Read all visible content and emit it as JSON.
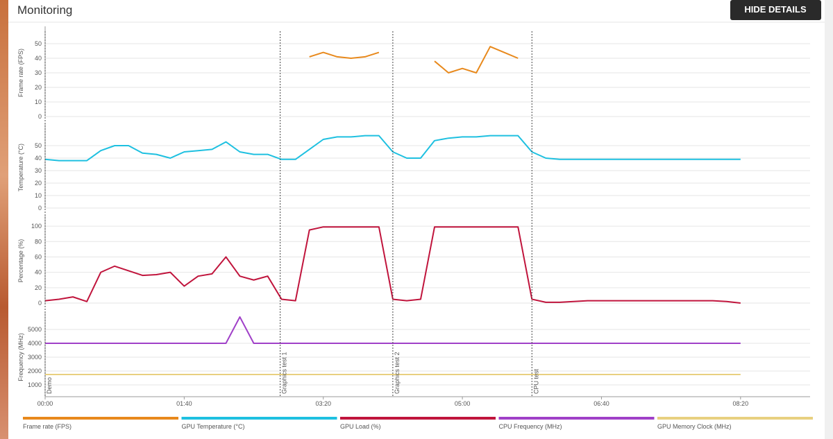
{
  "header": {
    "title": "Monitoring",
    "button": "HIDE DETAILS"
  },
  "chart_data": [
    {
      "type": "line",
      "ylabel": "Frame rate (FPS)",
      "xlim": [
        0,
        550
      ],
      "ylim": [
        0,
        60
      ],
      "yticks": [
        0,
        10,
        20,
        30,
        40,
        50
      ],
      "grid": true,
      "x": [
        0,
        10,
        20,
        30,
        40,
        50,
        60,
        70,
        80,
        90,
        100,
        110,
        120,
        130,
        140,
        150,
        160,
        170,
        180,
        190,
        200,
        210,
        220,
        230,
        240,
        250,
        260,
        270,
        280,
        290,
        300,
        310,
        320,
        330,
        340,
        350,
        360,
        370,
        380,
        390,
        400,
        410,
        420,
        430,
        440,
        450,
        460,
        470,
        480,
        490,
        500
      ],
      "series": [
        {
          "name": "Frame rate (FPS)",
          "color": "#e8891c",
          "values": [
            null,
            null,
            null,
            null,
            null,
            null,
            null,
            null,
            null,
            null,
            null,
            null,
            null,
            null,
            null,
            null,
            null,
            null,
            null,
            41,
            44,
            41,
            40,
            41,
            44,
            null,
            null,
            null,
            38,
            30,
            33,
            30,
            48,
            44,
            40,
            null,
            null,
            null,
            null,
            null,
            null,
            null,
            null,
            null,
            null,
            null,
            null,
            null,
            null,
            null,
            null
          ]
        }
      ]
    },
    {
      "type": "line",
      "ylabel": "Temperature (°C)",
      "xlim": [
        0,
        550
      ],
      "ylim": [
        0,
        65
      ],
      "yticks": [
        0,
        10,
        20,
        30,
        40,
        50
      ],
      "grid": true,
      "x": [
        0,
        10,
        20,
        30,
        40,
        50,
        60,
        70,
        80,
        90,
        100,
        110,
        120,
        130,
        140,
        150,
        160,
        170,
        180,
        190,
        200,
        210,
        220,
        230,
        240,
        250,
        260,
        270,
        280,
        290,
        300,
        310,
        320,
        330,
        340,
        350,
        360,
        370,
        380,
        390,
        400,
        410,
        420,
        430,
        440,
        450,
        460,
        470,
        480,
        490,
        500
      ],
      "series": [
        {
          "name": "GPU Temperature (°C)",
          "color": "#1ec0e0",
          "values": [
            39,
            38,
            38,
            38,
            46,
            50,
            50,
            44,
            43,
            40,
            45,
            46,
            47,
            53,
            45,
            43,
            43,
            39,
            39,
            47,
            55,
            57,
            57,
            58,
            58,
            45,
            40,
            40,
            54,
            56,
            57,
            57,
            58,
            58,
            58,
            45,
            40,
            39,
            39,
            39,
            39,
            39,
            39,
            39,
            39,
            39,
            39,
            39,
            39,
            39,
            39
          ]
        }
      ]
    },
    {
      "type": "line",
      "ylabel": "Percentage (%)",
      "xlim": [
        0,
        550
      ],
      "ylim": [
        0,
        110
      ],
      "yticks": [
        0,
        20,
        40,
        60,
        80,
        100
      ],
      "grid": true,
      "x": [
        0,
        10,
        20,
        30,
        40,
        50,
        60,
        70,
        80,
        90,
        100,
        110,
        120,
        130,
        140,
        150,
        160,
        170,
        180,
        190,
        200,
        210,
        220,
        230,
        240,
        250,
        260,
        270,
        280,
        290,
        300,
        310,
        320,
        330,
        340,
        350,
        360,
        370,
        380,
        390,
        400,
        410,
        420,
        430,
        440,
        450,
        460,
        470,
        480,
        490,
        500
      ],
      "series": [
        {
          "name": "GPU Load (%)",
          "color": "#c0143c",
          "values": [
            3,
            5,
            8,
            2,
            40,
            48,
            42,
            36,
            37,
            40,
            22,
            35,
            38,
            60,
            35,
            30,
            35,
            5,
            3,
            95,
            99,
            99,
            99,
            99,
            99,
            5,
            3,
            5,
            99,
            99,
            99,
            99,
            99,
            99,
            99,
            5,
            1,
            1,
            2,
            3,
            3,
            3,
            3,
            3,
            3,
            3,
            3,
            3,
            3,
            2,
            0
          ]
        }
      ]
    },
    {
      "type": "line",
      "ylabel": "Frequency (MHz)",
      "xlim": [
        0,
        550
      ],
      "ylim": [
        0,
        6000
      ],
      "yticks": [
        1000,
        2000,
        3000,
        4000,
        5000
      ],
      "grid": true,
      "xticks": [
        {
          "value": 0,
          "label": "00:00"
        },
        {
          "value": 100,
          "label": "01:40"
        },
        {
          "value": 200,
          "label": "03:20"
        },
        {
          "value": 300,
          "label": "05:00"
        },
        {
          "value": 400,
          "label": "06:40"
        },
        {
          "value": 500,
          "label": "08:20"
        }
      ],
      "markers": [
        {
          "x": 0,
          "label": "Demo"
        },
        {
          "x": 169,
          "label": "Graphics test 1"
        },
        {
          "x": 250,
          "label": "Graphics test 2"
        },
        {
          "x": 350,
          "label": "CPU test"
        }
      ],
      "x": [
        0,
        10,
        20,
        30,
        40,
        50,
        60,
        70,
        80,
        90,
        100,
        110,
        120,
        130,
        140,
        150,
        160,
        170,
        180,
        190,
        200,
        210,
        220,
        230,
        240,
        250,
        260,
        270,
        280,
        290,
        300,
        310,
        320,
        330,
        340,
        350,
        360,
        370,
        380,
        390,
        400,
        410,
        420,
        430,
        440,
        450,
        460,
        470,
        480,
        490,
        500
      ],
      "series": [
        {
          "name": "CPU Frequency (MHz)",
          "color": "#a040c8",
          "values": [
            4000,
            4000,
            4000,
            4000,
            4000,
            4000,
            4000,
            4000,
            4000,
            4000,
            4000,
            4000,
            4000,
            4000,
            5900,
            4000,
            4000,
            4000,
            4000,
            4000,
            4000,
            4000,
            4000,
            4000,
            4000,
            4000,
            4000,
            4000,
            4000,
            4000,
            4000,
            4000,
            4000,
            4000,
            4000,
            4000,
            4000,
            4000,
            4000,
            4000,
            4000,
            4000,
            4000,
            4000,
            4000,
            4000,
            4000,
            4000,
            4000,
            4000,
            4000
          ]
        },
        {
          "name": "GPU Memory Clock (MHz)",
          "color": "#e8d080",
          "values": [
            1750,
            1750,
            1750,
            1750,
            1750,
            1750,
            1750,
            1750,
            1750,
            1750,
            1750,
            1750,
            1750,
            1750,
            1750,
            1750,
            1750,
            1750,
            1750,
            1750,
            1750,
            1750,
            1750,
            1750,
            1750,
            1750,
            1750,
            1750,
            1750,
            1750,
            1750,
            1750,
            1750,
            1750,
            1750,
            1750,
            1750,
            1750,
            1750,
            1750,
            1750,
            1750,
            1750,
            1750,
            1750,
            1750,
            1750,
            1750,
            1750,
            1750,
            1750
          ]
        }
      ]
    }
  ]
}
